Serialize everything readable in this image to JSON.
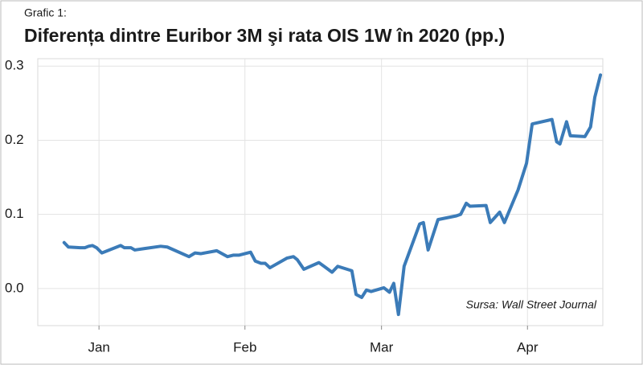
{
  "chart_data": {
    "type": "line",
    "figure_label": "Grafic 1:",
    "title": "Diferența dintre Euribor 3M şi rata OIS 1W în 2020 (pp.)",
    "annotation": "Sursa: Wall Street Journal",
    "x": [
      7.6,
      8.5,
      11,
      12,
      12.8,
      13.6,
      14.5,
      15.6,
      19.6,
      20.4,
      21.8,
      22.6,
      24.7,
      28.1,
      29.5,
      34.1,
      35.4,
      36.6,
      40,
      42.3,
      43.5,
      44.7,
      47.2,
      48.2,
      49.4,
      50.3,
      51.3,
      54.9,
      56.3,
      57.1,
      58.5,
      61.7,
      62.8,
      64.5,
      65.7,
      68.7,
      69.6,
      70.8,
      71.8,
      72.8,
      75.5,
      76.7,
      77.6,
      78.6,
      79.8,
      83.1,
      83.9,
      84.9,
      87,
      90.9,
      91.8,
      93,
      93.8,
      97.2,
      98.1,
      100.1,
      101.1,
      104,
      105.8,
      107,
      111.2,
      112.2,
      112.9,
      114.3,
      115.1,
      118.2,
      119.4,
      120.3,
      121.5
    ],
    "series": [
      {
        "color": "#3b7bb8",
        "values": [
          0.062,
          0.056,
          0.055,
          0.055,
          0.057,
          0.058,
          0.055,
          0.048,
          0.058,
          0.055,
          0.055,
          0.052,
          0.054,
          0.057,
          0.056,
          0.043,
          0.048,
          0.047,
          0.051,
          0.043,
          0.045,
          0.045,
          0.049,
          0.037,
          0.034,
          0.034,
          0.028,
          0.041,
          0.043,
          0.039,
          0.026,
          0.035,
          0.03,
          0.022,
          0.03,
          0.024,
          -0.008,
          -0.012,
          -0.002,
          -0.004,
          0.001,
          -0.005,
          0.007,
          -0.035,
          0.03,
          0.087,
          0.089,
          0.052,
          0.093,
          0.098,
          0.1,
          0.115,
          0.111,
          0.112,
          0.089,
          0.103,
          0.089,
          0.133,
          0.169,
          0.222,
          0.228,
          0.198,
          0.195,
          0.225,
          0.206,
          0.205,
          0.218,
          0.258,
          0.288
        ]
      }
    ],
    "xlim": [
      2,
      122
    ],
    "xticks": [
      {
        "value": 15,
        "label": "Jan"
      },
      {
        "value": 46,
        "label": "Feb"
      },
      {
        "value": 75,
        "label": "Mar"
      },
      {
        "value": 106,
        "label": "Apr"
      }
    ],
    "ylim": [
      -0.05,
      0.31
    ],
    "yticks": [
      {
        "value": 0,
        "label": "0.0"
      },
      0.1,
      0.2,
      0.3
    ],
    "grid": true
  }
}
